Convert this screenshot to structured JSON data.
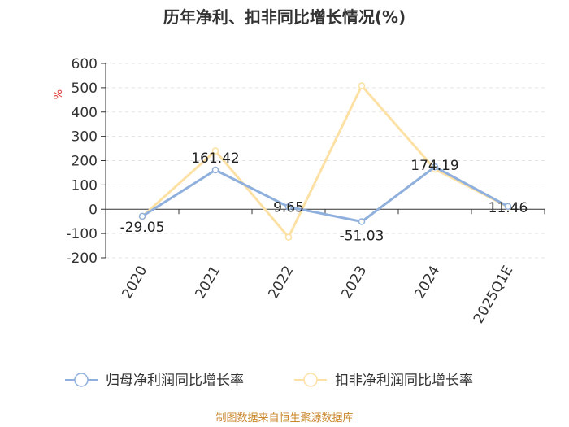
{
  "chart_data": {
    "type": "line",
    "title": "历年净利、扣非同比增长情况(%)",
    "ylabel": "%",
    "categories": [
      "2020",
      "2021",
      "2022",
      "2023",
      "2024",
      "2025Q1E"
    ],
    "ylim": [
      -200,
      600
    ],
    "yticks": [
      600,
      500,
      400,
      300,
      200,
      100,
      0,
      -100,
      -200
    ],
    "ytick_labels": [
      "600",
      "500",
      "400",
      "300",
      "200",
      "100",
      "0",
      "-100",
      "-200"
    ],
    "series": [
      {
        "name": "归母净利润同比增长率",
        "color": "#8fb0dd",
        "values": [
          -29.05,
          161.42,
          9.65,
          -51.03,
          174.19,
          11.46
        ],
        "labels": [
          "-29.05",
          "161.42",
          "9.65",
          "-51.03",
          "174.19",
          "11.46"
        ]
      },
      {
        "name": "扣非净利润同比增长率",
        "color": "#fde1a4",
        "values": [
          -30,
          240,
          -115,
          508,
          165,
          10
        ]
      }
    ],
    "legend_position": "bottom",
    "grid": "horizontal-dashed"
  },
  "source": "制图数据来自恒生聚源数据库"
}
